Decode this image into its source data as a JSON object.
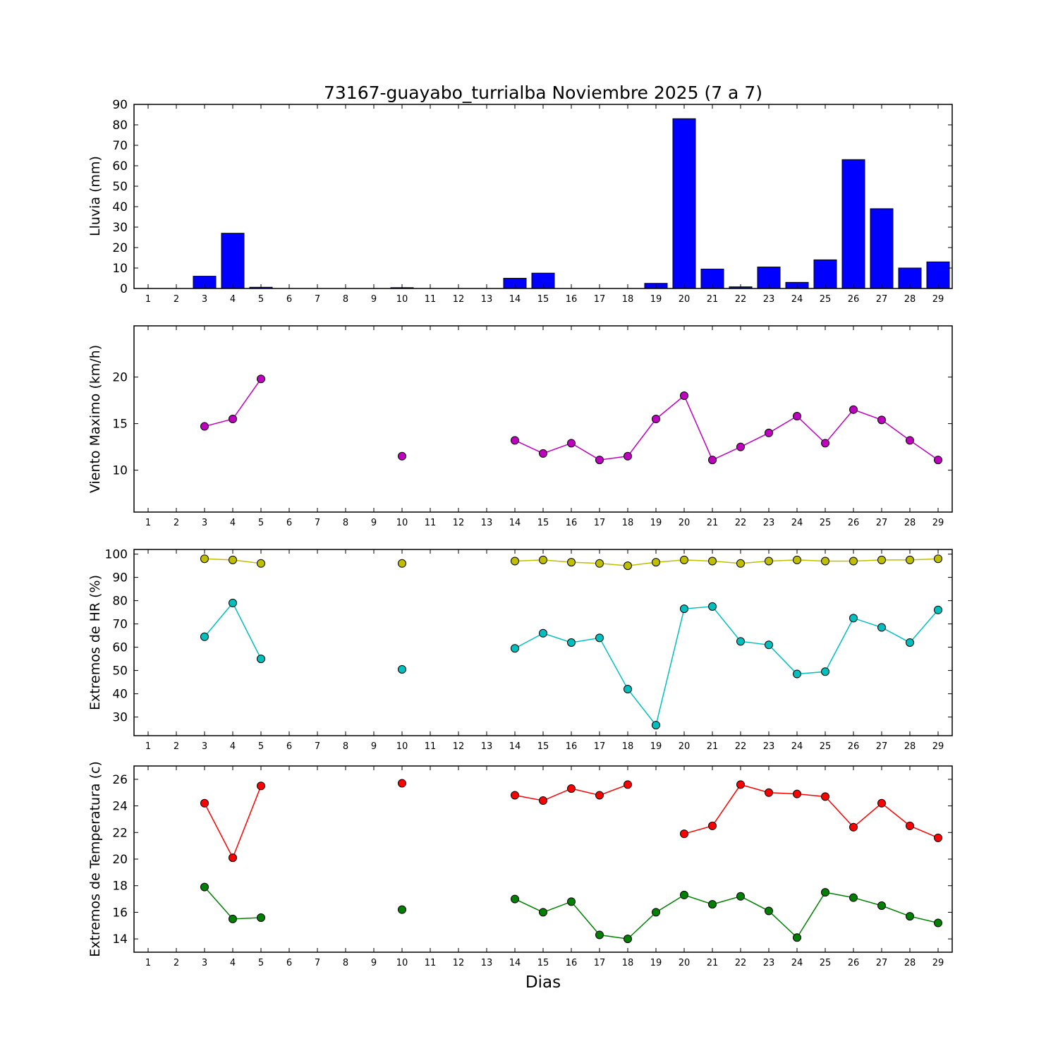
{
  "title": "73167-guayabo_turrialba Noviembre 2025  (7 a 7)",
  "xlabel": "Dias",
  "axis": {
    "x": [
      1,
      2,
      3,
      4,
      5,
      6,
      7,
      8,
      9,
      10,
      11,
      12,
      13,
      14,
      15,
      16,
      17,
      18,
      19,
      20,
      21,
      22,
      23,
      24,
      25,
      26,
      27,
      28,
      29
    ],
    "xlim": [
      0.5,
      29.5
    ]
  },
  "chart_data": [
    {
      "name": "rain-bar-chart",
      "type": "bar",
      "ylabel": "Lluvia (mm)",
      "color": "#0000ff",
      "ylim": [
        0,
        90
      ],
      "yticks": [
        0,
        10,
        20,
        30,
        40,
        50,
        60,
        70,
        80,
        90
      ],
      "values": [
        0,
        0,
        6,
        27,
        0.6,
        0,
        0,
        0,
        0,
        0.4,
        0,
        0,
        0,
        5,
        7.5,
        0,
        0,
        0,
        2.5,
        83,
        9.5,
        0.8,
        10.5,
        3,
        14,
        63,
        39,
        10,
        13
      ]
    },
    {
      "name": "wind-line-chart",
      "type": "line",
      "ylabel": "Viento Maximo (km/h)",
      "ylim": [
        5.5,
        25.5
      ],
      "yticks": [
        10,
        15,
        20
      ],
      "series": [
        {
          "name": "wind-max",
          "color": "#bf00bf",
          "values": [
            null,
            null,
            14.7,
            15.5,
            19.8,
            null,
            null,
            null,
            null,
            11.5,
            null,
            null,
            null,
            13.2,
            11.8,
            12.9,
            11.1,
            11.5,
            15.5,
            18.0,
            11.1,
            12.5,
            14.0,
            15.8,
            12.9,
            16.5,
            15.4,
            13.2,
            11.1
          ]
        }
      ]
    },
    {
      "name": "humidity-line-chart",
      "type": "line",
      "ylabel": "Extremos de HR (%)",
      "ylim": [
        22,
        102
      ],
      "yticks": [
        30,
        40,
        50,
        60,
        70,
        80,
        90,
        100
      ],
      "series": [
        {
          "name": "hr-max",
          "color": "#bfbf00",
          "values": [
            null,
            null,
            98,
            97.5,
            96,
            null,
            null,
            null,
            null,
            96,
            null,
            null,
            null,
            97,
            97.5,
            96.5,
            96,
            95,
            96.5,
            97.5,
            97,
            96,
            97,
            97.5,
            97,
            97,
            97.5,
            97.5,
            98
          ]
        },
        {
          "name": "hr-min",
          "color": "#00bfbf",
          "values": [
            null,
            null,
            64.5,
            79,
            55,
            null,
            null,
            null,
            null,
            50.5,
            null,
            null,
            null,
            59.5,
            66,
            62,
            64,
            42,
            26.5,
            76.5,
            77.5,
            62.5,
            61,
            48.5,
            49.5,
            72.5,
            68.5,
            62,
            76
          ]
        }
      ]
    },
    {
      "name": "temperature-line-chart",
      "type": "line",
      "ylabel": "Extremos de Temperatura (c)",
      "ylim": [
        13,
        27
      ],
      "yticks": [
        14,
        16,
        18,
        20,
        22,
        24,
        26
      ],
      "series": [
        {
          "name": "temp-max",
          "color": "#ff0000",
          "values": [
            null,
            null,
            24.2,
            20.1,
            25.5,
            null,
            null,
            null,
            null,
            25.7,
            null,
            null,
            null,
            24.8,
            24.4,
            25.3,
            24.8,
            25.6,
            null,
            21.9,
            22.5,
            25.6,
            25.0,
            24.9,
            24.7,
            22.4,
            24.2,
            22.5,
            21.6
          ]
        },
        {
          "name": "temp-min",
          "color": "#008000",
          "values": [
            null,
            null,
            17.9,
            15.5,
            15.6,
            null,
            null,
            null,
            null,
            16.2,
            null,
            null,
            null,
            17.0,
            16.0,
            16.8,
            14.3,
            14.0,
            16.0,
            17.3,
            16.6,
            17.2,
            16.1,
            14.1,
            17.5,
            17.1,
            16.5,
            15.7,
            15.2
          ]
        }
      ]
    }
  ]
}
